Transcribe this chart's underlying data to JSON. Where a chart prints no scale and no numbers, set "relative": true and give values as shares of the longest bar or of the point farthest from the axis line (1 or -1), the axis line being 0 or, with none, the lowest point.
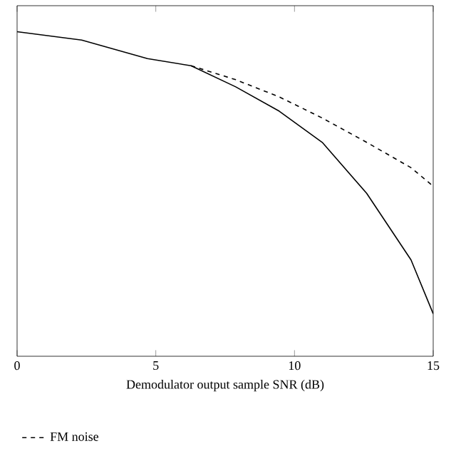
{
  "chart_data": {
    "type": "line",
    "relative": true,
    "xlabel": "Demodulator output sample SNR (dB)",
    "xlim": [
      0,
      15
    ],
    "xticks": [
      0,
      5,
      10,
      15
    ],
    "legend": "bottom",
    "series": [
      {
        "name": "FM noise",
        "color": "#000000",
        "line_style": "dashed",
        "x": [
          6.27,
          7.88,
          9.45,
          11.0,
          12.6,
          14.2,
          15
        ],
        "values": [
          0.895,
          0.852,
          0.799,
          0.734,
          0.659,
          0.581,
          0.524
        ]
      },
      {
        "color": "#000000",
        "line_style": "solid",
        "x": [
          0,
          2.33,
          4.7,
          6.27,
          7.88,
          9.45,
          11.0,
          12.6,
          14.2,
          15
        ],
        "values": [
          1,
          0.974,
          0.917,
          0.895,
          0.83,
          0.755,
          0.659,
          0.502,
          0.297,
          0.131
        ]
      }
    ]
  }
}
